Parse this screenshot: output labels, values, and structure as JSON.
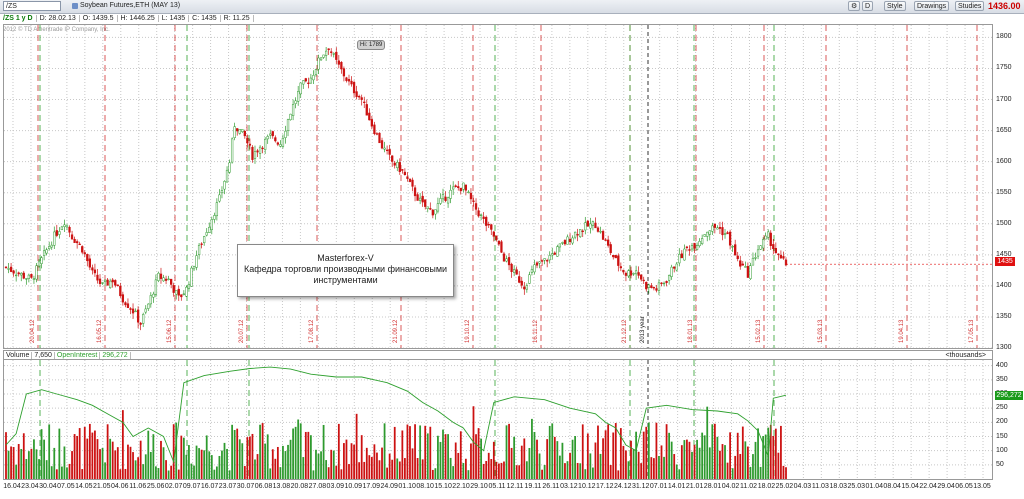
{
  "toolbar": {
    "symbol": "/ZS",
    "description": "Soybean Futures,ETH (MAY 13)",
    "buttons": [
      "D",
      "Style",
      "Drawings",
      "Studies"
    ],
    "last_price": "1436.00"
  },
  "infobar": [
    "/ZS 1 y D",
    "D: 28.02.13",
    "O: 1439.5",
    "H: 1446.25",
    "L: 1435",
    "C: 1435",
    "R: 11.25"
  ],
  "copyright": "2012 © TD Ameritrade IP Company, Inc.",
  "note": {
    "line1": "Masterforex-V",
    "line2": "Кафедра торговли производными финансовыми",
    "line3": "инструментами"
  },
  "hi_label": "Hi: 1789",
  "last_price_badge": "1435",
  "volume_panel": {
    "labels": [
      "Volume",
      "7,650",
      "OpenInterest",
      "296,272"
    ],
    "units": "<thousands>",
    "oi_badge": "296,272"
  },
  "price_axis": [
    "1800",
    "1750",
    "1700",
    "1650",
    "1600",
    "1550",
    "1500",
    "1450",
    "1400",
    "1350",
    "1300"
  ],
  "volume_axis": [
    "400",
    "350",
    "300",
    "250",
    "200",
    "150",
    "100",
    "50"
  ],
  "x_axis": [
    "16.04",
    "23.04",
    "30.04",
    "07.05",
    "14.05",
    "21.05",
    "04.06",
    "11.06",
    "25.06",
    "02.07",
    "09.07",
    "16.07",
    "23.07",
    "30.07",
    "06.08",
    "13.08",
    "20.08",
    "27.08",
    "03.09",
    "10.09",
    "17.09",
    "24.09",
    "01.10",
    "08.10",
    "15.10",
    "22.10",
    "29.10",
    "05.11",
    "12.11",
    "19.11",
    "26.11",
    "03.12",
    "10.12",
    "17.12",
    "24.12",
    "31.12",
    "07.01",
    "14.01",
    "21.01",
    "28.01",
    "04.02",
    "11.02",
    "18.02",
    "25.02",
    "04.03",
    "11.03",
    "18.03",
    "25.03",
    "01.04",
    "08.04",
    "15.04",
    "22.04",
    "29.04",
    "06.05",
    "13.05"
  ],
  "red_markers": [
    "20.04.12",
    "16.05.12",
    "15.06.12",
    "20.07.12",
    "17.08.12",
    "21.09.12",
    "19.10.12",
    "16.11.12",
    "21.12.12",
    "18.01.13",
    "15.02.13",
    "15.03.13",
    "19.04.13",
    "17.05.13"
  ],
  "green_markers": [
    "",
    "",
    "",
    "",
    "",
    "",
    ""
  ],
  "black_marker": "2013 year",
  "colors": {
    "up": "#2e9a2e",
    "down": "#cc1111",
    "oi_line": "#2ea02e",
    "red_line": "#d23030",
    "green_line": "#2ea02e"
  },
  "chart_data": {
    "type": "candlestick",
    "title": "Soybean Futures,ETH (MAY 13)",
    "ylim": [
      1300,
      1820
    ],
    "close_path": [
      [
        0,
        1430
      ],
      [
        5,
        1420
      ],
      [
        10,
        1410
      ],
      [
        15,
        1450
      ],
      [
        19,
        1480
      ],
      [
        23,
        1505
      ],
      [
        26,
        1480
      ],
      [
        30,
        1460
      ],
      [
        34,
        1420
      ],
      [
        38,
        1400
      ],
      [
        42,
        1410
      ],
      [
        46,
        1380
      ],
      [
        50,
        1360
      ],
      [
        53,
        1340
      ],
      [
        56,
        1370
      ],
      [
        60,
        1415
      ],
      [
        64,
        1410
      ],
      [
        68,
        1380
      ],
      [
        71,
        1395
      ],
      [
        75,
        1450
      ],
      [
        80,
        1500
      ],
      [
        84,
        1540
      ],
      [
        88,
        1600
      ],
      [
        90,
        1660
      ],
      [
        94,
        1640
      ],
      [
        97,
        1610
      ],
      [
        100,
        1625
      ],
      [
        104,
        1640
      ],
      [
        108,
        1630
      ],
      [
        112,
        1680
      ],
      [
        116,
        1720
      ],
      [
        120,
        1735
      ],
      [
        124,
        1770
      ],
      [
        127,
        1785
      ],
      [
        130,
        1760
      ],
      [
        133,
        1740
      ],
      [
        136,
        1720
      ],
      [
        140,
        1700
      ],
      [
        144,
        1660
      ],
      [
        148,
        1625
      ],
      [
        152,
        1600
      ],
      [
        156,
        1585
      ],
      [
        160,
        1555
      ],
      [
        164,
        1530
      ],
      [
        168,
        1520
      ],
      [
        172,
        1540
      ],
      [
        176,
        1555
      ],
      [
        180,
        1560
      ],
      [
        184,
        1530
      ],
      [
        188,
        1505
      ],
      [
        192,
        1480
      ],
      [
        196,
        1445
      ],
      [
        200,
        1420
      ],
      [
        204,
        1400
      ],
      [
        208,
        1430
      ],
      [
        212,
        1440
      ],
      [
        216,
        1455
      ],
      [
        220,
        1470
      ],
      [
        224,
        1485
      ],
      [
        228,
        1495
      ],
      [
        232,
        1500
      ],
      [
        236,
        1470
      ],
      [
        240,
        1440
      ],
      [
        244,
        1420
      ],
      [
        248,
        1425
      ],
      [
        252,
        1400
      ],
      [
        256,
        1395
      ],
      [
        260,
        1410
      ],
      [
        264,
        1440
      ],
      [
        268,
        1460
      ],
      [
        272,
        1470
      ],
      [
        276,
        1490
      ],
      [
        280,
        1495
      ],
      [
        284,
        1480
      ],
      [
        288,
        1440
      ],
      [
        292,
        1420
      ],
      [
        296,
        1460
      ],
      [
        300,
        1480
      ],
      [
        304,
        1445
      ],
      [
        307,
        1435
      ]
    ],
    "volume_ylim": [
      0,
      420
    ],
    "open_interest_path": [
      [
        0,
        120
      ],
      [
        4,
        160
      ],
      [
        8,
        300
      ],
      [
        14,
        315
      ],
      [
        20,
        300
      ],
      [
        28,
        280
      ],
      [
        34,
        260
      ],
      [
        40,
        230
      ],
      [
        46,
        200
      ],
      [
        50,
        150
      ],
      [
        56,
        180
      ],
      [
        62,
        150
      ],
      [
        66,
        60
      ],
      [
        70,
        340
      ],
      [
        78,
        365
      ],
      [
        88,
        380
      ],
      [
        96,
        390
      ],
      [
        104,
        395
      ],
      [
        112,
        388
      ],
      [
        120,
        370
      ],
      [
        130,
        360
      ],
      [
        140,
        360
      ],
      [
        150,
        340
      ],
      [
        158,
        310
      ],
      [
        164,
        270
      ],
      [
        170,
        240
      ],
      [
        176,
        200
      ],
      [
        180,
        180
      ],
      [
        184,
        130
      ],
      [
        188,
        100
      ],
      [
        192,
        270
      ],
      [
        200,
        290
      ],
      [
        212,
        280
      ],
      [
        222,
        250
      ],
      [
        232,
        230
      ],
      [
        236,
        200
      ],
      [
        240,
        180
      ],
      [
        244,
        120
      ],
      [
        248,
        100
      ],
      [
        252,
        250
      ],
      [
        260,
        260
      ],
      [
        270,
        245
      ],
      [
        280,
        240
      ],
      [
        288,
        230
      ],
      [
        292,
        205
      ],
      [
        296,
        170
      ],
      [
        300,
        80
      ],
      [
        302,
        285
      ],
      [
        307,
        296
      ]
    ]
  }
}
